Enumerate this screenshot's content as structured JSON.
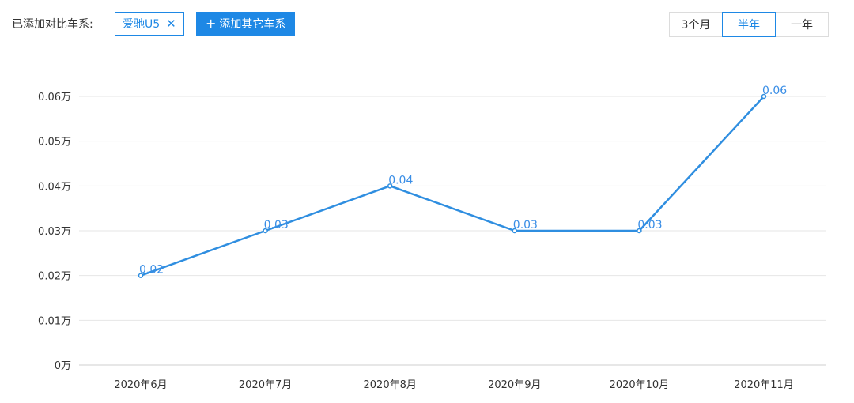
{
  "toolbar": {
    "added_label": "已添加对比车系:",
    "tag_label": "爱驰U5",
    "tag_close": "✕",
    "add_button_label": "添加其它车系",
    "add_icon": "plus-icon",
    "periods": [
      "3个月",
      "半年",
      "一年"
    ],
    "active_period": "半年"
  },
  "colors": {
    "accent": "#1e88e5",
    "line": "#2f8ee0",
    "label": "#3a8ee6"
  },
  "chart_data": {
    "type": "line",
    "categories": [
      "2020年6月",
      "2020年7月",
      "2020年8月",
      "2020年9月",
      "2020年10月",
      "2020年11月"
    ],
    "series": [
      {
        "values": [
          0.02,
          0.03,
          0.04,
          0.03,
          0.03,
          0.06
        ]
      }
    ],
    "data_labels": [
      "0.02",
      "0.03",
      "0.04",
      "0.03",
      "0.03",
      "0.06"
    ],
    "yticks": [
      "0万",
      "0.01万",
      "0.02万",
      "0.03万",
      "0.04万",
      "0.05万",
      "0.06万"
    ],
    "ylim": [
      0,
      0.06
    ],
    "grid": true,
    "legend": "none"
  }
}
